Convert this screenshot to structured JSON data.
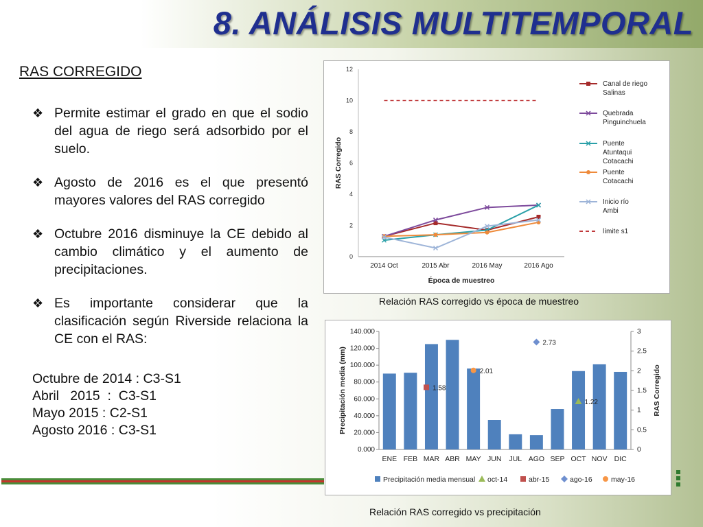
{
  "page": {
    "title": "8. ANÁLISIS MULTITEMPORAL",
    "section_title": "RAS CORREGIDO",
    "bullets": [
      "Permite estimar el grado en que el sodio del agua de riego será adsorbido por el suelo.",
      "Agosto de 2016 es el que presentó mayores valores del RAS corregido",
      "Octubre 2016 disminuye la CE debido al cambio climático y el aumento de precipitaciones.",
      "Es importante considerar que la clasificación según Riverside relaciona la CE con el RAS:"
    ],
    "classifications": [
      "Octubre de 2014 : C3-S1",
      "Abril   2015  :  C3-S1",
      "Mayo 2015 : C2-S1",
      "Agosto 2016 : C3-S1"
    ],
    "caption1": "Relación RAS corregido  vs época de muestreo",
    "caption2": "Relación RAS corregido  vs precipitación"
  },
  "chart_data": [
    {
      "type": "line",
      "title": "",
      "xlabel": "Época de muestreo",
      "ylabel": "RAS Corregido",
      "categories": [
        "2014 Oct",
        "2015 Abr",
        "2016 May",
        "2016 Ago"
      ],
      "ylim": [
        0,
        12
      ],
      "yticks": [
        0,
        2,
        4,
        6,
        8,
        10,
        12
      ],
      "legend_position": "right",
      "series": [
        {
          "name": "Canal de riego Salinas",
          "color": "#a52a2a",
          "marker": "square",
          "values": [
            1.3,
            2.15,
            1.7,
            2.55
          ]
        },
        {
          "name": "Quebrada Pinguinchuela",
          "color": "#7d4a9c",
          "marker": "x",
          "values": [
            1.3,
            2.35,
            3.15,
            3.3
          ]
        },
        {
          "name": "Puente Atuntaqui Cotacachi",
          "color": "#2aa0a8",
          "marker": "x",
          "values": [
            1.05,
            1.4,
            1.7,
            3.3
          ]
        },
        {
          "name": "Puente Cotacachi",
          "color": "#ee8a3a",
          "marker": "circle",
          "values": [
            1.3,
            1.4,
            1.55,
            2.2
          ]
        },
        {
          "name": "Inicio río Ambi",
          "color": "#9db4d8",
          "marker": "x",
          "values": [
            1.25,
            0.55,
            1.95,
            2.35
          ]
        },
        {
          "name": "límite s1",
          "color": "#c0393b",
          "dashed": true,
          "values": [
            10,
            10,
            10,
            10
          ]
        }
      ]
    },
    {
      "type": "bar",
      "title": "",
      "xlabel": "",
      "ylabel": "Precipitación media (mm)",
      "y2label": "RAS Corregido",
      "categories": [
        "ENE",
        "FEB",
        "MAR",
        "ABR",
        "MAY",
        "JUN",
        "JUL",
        "AGO",
        "SEP",
        "OCT",
        "NOV",
        "DIC"
      ],
      "ylim": [
        0,
        140
      ],
      "yticks": [
        "0.000",
        "20.000",
        "40.000",
        "60.000",
        "80.000",
        "100.000",
        "120.000",
        "140.000"
      ],
      "y2lim": [
        0,
        3
      ],
      "y2ticks": [
        "0",
        "0.5",
        "1",
        "1.5",
        "2",
        "2.5",
        "3"
      ],
      "legend_position": "bottom",
      "bars": {
        "name": "Precipitación media mensual",
        "color": "#4f81bd",
        "values": [
          90,
          91,
          125,
          130,
          96,
          35,
          18,
          17,
          48,
          93,
          101,
          92
        ]
      },
      "points": [
        {
          "name": "oct-14",
          "color": "#9bbb59",
          "marker": "triangle",
          "category": "OCT",
          "value": 1.22,
          "label": "1.22"
        },
        {
          "name": "abr-15",
          "color": "#c0504d",
          "marker": "square",
          "category": "ABR",
          "value": 1.58,
          "label": "1.58"
        },
        {
          "name": "ago-16",
          "color": "#6f8fcf",
          "marker": "diamond",
          "category": "AGO",
          "value": 2.73,
          "label": "2.73"
        },
        {
          "name": "may-16",
          "color": "#f79646",
          "marker": "circle",
          "category": "MAY",
          "value": 2.01,
          "label": "2.01"
        }
      ]
    }
  ]
}
